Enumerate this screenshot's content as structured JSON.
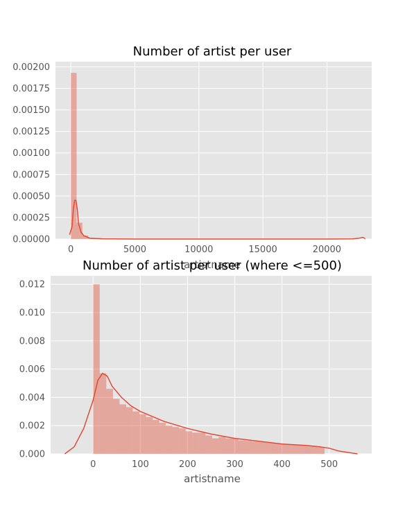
{
  "chart_data": [
    {
      "type": "histogram",
      "title": "Number of artist per user",
      "xlabel": "artistname",
      "ylabel": "",
      "xlim": [
        -1200,
        23500
      ],
      "ylim": [
        0,
        0.00206
      ],
      "xticks": [
        0,
        5000,
        10000,
        15000,
        20000
      ],
      "xtick_labels": [
        "0",
        "5000",
        "10000",
        "15000",
        "20000"
      ],
      "yticks": [
        0,
        0.00025,
        0.0005,
        0.00075,
        0.001,
        0.00125,
        0.0015,
        0.00175,
        0.002
      ],
      "ytick_labels": [
        "0.00000",
        "0.00025",
        "0.00050",
        "0.00075",
        "0.00100",
        "0.00125",
        "0.00150",
        "0.00175",
        "0.00200"
      ],
      "grid": true,
      "bins": [
        {
          "x0": 0,
          "x1": 450,
          "value": 0.00193
        },
        {
          "x0": 450,
          "x1": 900,
          "value": 0.00019
        },
        {
          "x0": 900,
          "x1": 1350,
          "value": 4e-05
        },
        {
          "x0": 1350,
          "x1": 1800,
          "value": 1.5e-05
        },
        {
          "x0": 1800,
          "x1": 2250,
          "value": 6e-06
        }
      ],
      "kde": [
        [
          -100,
          5e-05
        ],
        [
          0,
          0.0001
        ],
        [
          100,
          0.00015
        ],
        [
          200,
          0.00035
        ],
        [
          300,
          0.00045
        ],
        [
          400,
          0.00045
        ],
        [
          500,
          0.00035
        ],
        [
          600,
          0.00018
        ],
        [
          800,
          8e-05
        ],
        [
          1000,
          4e-05
        ],
        [
          1500,
          1e-05
        ],
        [
          2500,
          3e-06
        ],
        [
          5000,
          0
        ],
        [
          10000,
          0
        ],
        [
          15000,
          0
        ],
        [
          20000,
          0
        ],
        [
          22000,
          2e-06
        ],
        [
          22500,
          1e-05
        ],
        [
          22800,
          2e-05
        ],
        [
          23000,
          5e-06
        ]
      ],
      "colors": {
        "bar": "#E24A33",
        "line": "#E24A33",
        "background": "#E5E5E5"
      }
    },
    {
      "type": "histogram",
      "title": "Number of artist per user (where <=500)",
      "xlabel": "artistname",
      "ylabel": "",
      "xlim": [
        -90,
        590
      ],
      "ylim": [
        0,
        0.0126
      ],
      "xticks": [
        0,
        100,
        200,
        300,
        400,
        500
      ],
      "xtick_labels": [
        "0",
        "100",
        "200",
        "300",
        "400",
        "500"
      ],
      "yticks": [
        0,
        0.002,
        0.004,
        0.006,
        0.008,
        0.01,
        0.012
      ],
      "ytick_labels": [
        "0.000",
        "0.002",
        "0.004",
        "0.006",
        "0.008",
        "0.010",
        "0.012"
      ],
      "grid": true,
      "bins": [
        {
          "x0": 0,
          "x1": 14,
          "value": 0.012
        },
        {
          "x0": 14,
          "x1": 28,
          "value": 0.0057
        },
        {
          "x0": 28,
          "x1": 42,
          "value": 0.0046
        },
        {
          "x0": 42,
          "x1": 56,
          "value": 0.0039
        },
        {
          "x0": 56,
          "x1": 70,
          "value": 0.0035
        },
        {
          "x0": 70,
          "x1": 84,
          "value": 0.0033
        },
        {
          "x0": 84,
          "x1": 98,
          "value": 0.003
        },
        {
          "x0": 98,
          "x1": 112,
          "value": 0.0028
        },
        {
          "x0": 112,
          "x1": 126,
          "value": 0.0026
        },
        {
          "x0": 126,
          "x1": 140,
          "value": 0.0024
        },
        {
          "x0": 140,
          "x1": 154,
          "value": 0.0022
        },
        {
          "x0": 154,
          "x1": 168,
          "value": 0.002
        },
        {
          "x0": 168,
          "x1": 182,
          "value": 0.0019
        },
        {
          "x0": 182,
          "x1": 196,
          "value": 0.0018
        },
        {
          "x0": 196,
          "x1": 210,
          "value": 0.0016
        },
        {
          "x0": 210,
          "x1": 224,
          "value": 0.0015
        },
        {
          "x0": 224,
          "x1": 238,
          "value": 0.0015
        },
        {
          "x0": 238,
          "x1": 252,
          "value": 0.0013
        },
        {
          "x0": 252,
          "x1": 266,
          "value": 0.0011
        },
        {
          "x0": 266,
          "x1": 280,
          "value": 0.0012
        },
        {
          "x0": 280,
          "x1": 294,
          "value": 0.0011
        },
        {
          "x0": 294,
          "x1": 308,
          "value": 0.0011
        },
        {
          "x0": 308,
          "x1": 322,
          "value": 0.00095
        },
        {
          "x0": 322,
          "x1": 336,
          "value": 0.00092
        },
        {
          "x0": 336,
          "x1": 350,
          "value": 0.00088
        },
        {
          "x0": 350,
          "x1": 364,
          "value": 0.00085
        },
        {
          "x0": 364,
          "x1": 378,
          "value": 0.0008
        },
        {
          "x0": 378,
          "x1": 392,
          "value": 0.00075
        },
        {
          "x0": 392,
          "x1": 406,
          "value": 0.00072
        },
        {
          "x0": 406,
          "x1": 420,
          "value": 0.00068
        },
        {
          "x0": 420,
          "x1": 434,
          "value": 0.00065
        },
        {
          "x0": 434,
          "x1": 448,
          "value": 0.0006
        },
        {
          "x0": 448,
          "x1": 462,
          "value": 0.00058
        },
        {
          "x0": 462,
          "x1": 476,
          "value": 0.00052
        },
        {
          "x0": 476,
          "x1": 490,
          "value": 0.00048
        }
      ],
      "kde": [
        [
          -60,
          0
        ],
        [
          -40,
          0.0005
        ],
        [
          -20,
          0.0018
        ],
        [
          0,
          0.0038
        ],
        [
          10,
          0.0052
        ],
        [
          20,
          0.0057
        ],
        [
          30,
          0.0055
        ],
        [
          40,
          0.0048
        ],
        [
          60,
          0.004
        ],
        [
          80,
          0.0034
        ],
        [
          100,
          0.003
        ],
        [
          150,
          0.0023
        ],
        [
          200,
          0.0018
        ],
        [
          250,
          0.0014
        ],
        [
          300,
          0.0011
        ],
        [
          350,
          0.0009
        ],
        [
          400,
          0.0007
        ],
        [
          450,
          0.0006
        ],
        [
          480,
          0.0005
        ],
        [
          500,
          0.0004
        ],
        [
          520,
          0.0002
        ],
        [
          550,
          5e-05
        ],
        [
          560,
          0
        ]
      ],
      "colors": {
        "bar": "#E24A33",
        "line": "#E24A33",
        "background": "#E5E5E5"
      }
    }
  ]
}
